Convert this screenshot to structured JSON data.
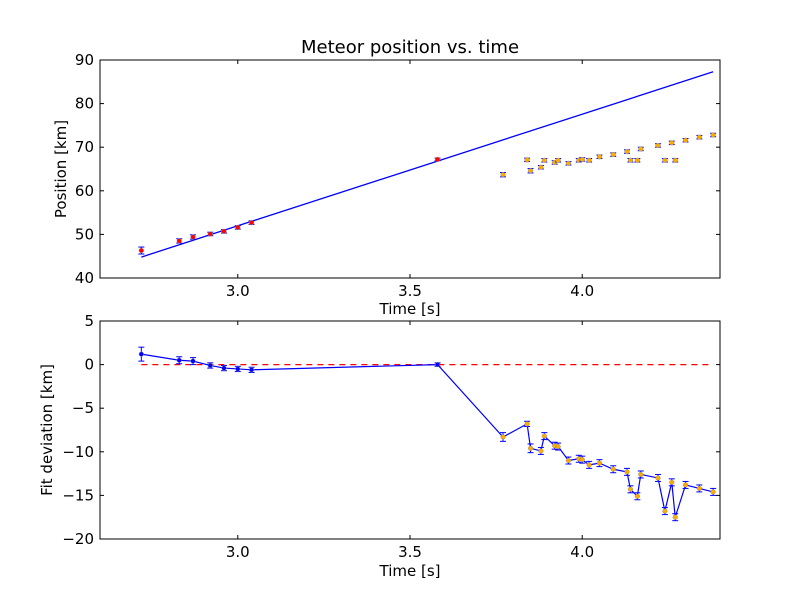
{
  "chart_data": [
    {
      "type": "scatter",
      "title": "Meteor position vs. time",
      "xlabel": "Time [s]",
      "ylabel": "Position [km]",
      "xlim": [
        2.6,
        4.4
      ],
      "ylim": [
        40,
        90
      ],
      "xticks": [
        "3.0",
        "3.5",
        "4.0"
      ],
      "xtick_values": [
        3.0,
        3.5,
        4.0
      ],
      "yticks": [
        "40",
        "50",
        "60",
        "70",
        "80",
        "90"
      ],
      "ytick_values": [
        40,
        50,
        60,
        70,
        80,
        90
      ],
      "fit_line": {
        "x": [
          2.72,
          4.38
        ],
        "y": [
          44.8,
          87.3
        ],
        "color": "#0000ff"
      },
      "series": [
        {
          "color": "#ff0000",
          "x": [
            2.72,
            2.83,
            2.87,
            2.92,
            2.96,
            3.0,
            3.04,
            3.58
          ],
          "y": [
            46.3,
            48.5,
            49.4,
            50.1,
            50.7,
            51.6,
            52.7,
            67.2
          ],
          "yerr": [
            0.8,
            0.5,
            0.5,
            0.4,
            0.4,
            0.4,
            0.4,
            0.3
          ]
        },
        {
          "color": "#ffaa00",
          "x": [
            3.77,
            3.84,
            3.85,
            3.88,
            3.89,
            3.92,
            3.93,
            3.96,
            3.99,
            4.0,
            4.02,
            4.05,
            4.09,
            4.13,
            4.14,
            4.16,
            4.17,
            4.22,
            4.24,
            4.26,
            4.27,
            4.3,
            4.34,
            4.38
          ],
          "y": [
            63.7,
            67.1,
            64.6,
            65.4,
            67.0,
            66.5,
            67.0,
            66.3,
            67.0,
            67.2,
            67.0,
            67.8,
            68.3,
            69.0,
            67.0,
            67.0,
            69.6,
            70.4,
            67.0,
            71.0,
            67.0,
            71.6,
            72.3,
            72.8
          ],
          "yerr": [
            0.5,
            0.4,
            0.5,
            0.4,
            0.4,
            0.4,
            0.4,
            0.4,
            0.4,
            0.4,
            0.4,
            0.4,
            0.4,
            0.4,
            0.4,
            0.4,
            0.4,
            0.4,
            0.4,
            0.4,
            0.4,
            0.4,
            0.4,
            0.4
          ]
        }
      ]
    },
    {
      "type": "line",
      "title": "",
      "xlabel": "Time [s]",
      "ylabel": "Fit deviation [km]",
      "xlim": [
        2.6,
        4.4
      ],
      "ylim": [
        -20,
        5
      ],
      "xticks": [
        "3.0",
        "3.5",
        "4.0"
      ],
      "xtick_values": [
        3.0,
        3.5,
        4.0
      ],
      "yticks": [
        "−20",
        "−15",
        "−10",
        "−5",
        "0",
        "5"
      ],
      "ytick_values": [
        -20,
        -15,
        -10,
        -5,
        0,
        5
      ],
      "zero_line": {
        "y": 0,
        "color": "#ff0000",
        "style": "dashed"
      },
      "series": [
        {
          "color": "#0000ff",
          "marker_color": "#0000ff",
          "x": [
            2.72,
            2.83,
            2.87,
            2.92,
            2.96,
            3.0,
            3.04,
            3.58
          ],
          "y": [
            1.2,
            0.5,
            0.4,
            -0.1,
            -0.4,
            -0.5,
            -0.6,
            0.0
          ],
          "yerr": [
            0.8,
            0.4,
            0.4,
            0.3,
            0.3,
            0.3,
            0.3,
            0.2
          ]
        },
        {
          "color": "#0000ff",
          "marker_color": "#ffaa00",
          "x": [
            3.77,
            3.84,
            3.85,
            3.88,
            3.89,
            3.92,
            3.93,
            3.96,
            3.99,
            4.0,
            4.02,
            4.05,
            4.09,
            4.13,
            4.14,
            4.16,
            4.17,
            4.22,
            4.24,
            4.26,
            4.27,
            4.3,
            4.34,
            4.38
          ],
          "y": [
            -8.3,
            -6.8,
            -9.6,
            -9.9,
            -8.2,
            -9.3,
            -9.4,
            -11.0,
            -10.8,
            -10.9,
            -11.5,
            -11.3,
            -12.0,
            -12.3,
            -14.3,
            -15.1,
            -12.6,
            -13.0,
            -16.8,
            -13.5,
            -17.5,
            -13.8,
            -14.2,
            -14.6
          ],
          "yerr": [
            0.5,
            0.3,
            0.5,
            0.4,
            0.4,
            0.4,
            0.4,
            0.4,
            0.4,
            0.4,
            0.4,
            0.4,
            0.4,
            0.4,
            0.4,
            0.4,
            0.4,
            0.4,
            0.4,
            0.4,
            0.4,
            0.4,
            0.4,
            0.4
          ]
        }
      ]
    }
  ]
}
